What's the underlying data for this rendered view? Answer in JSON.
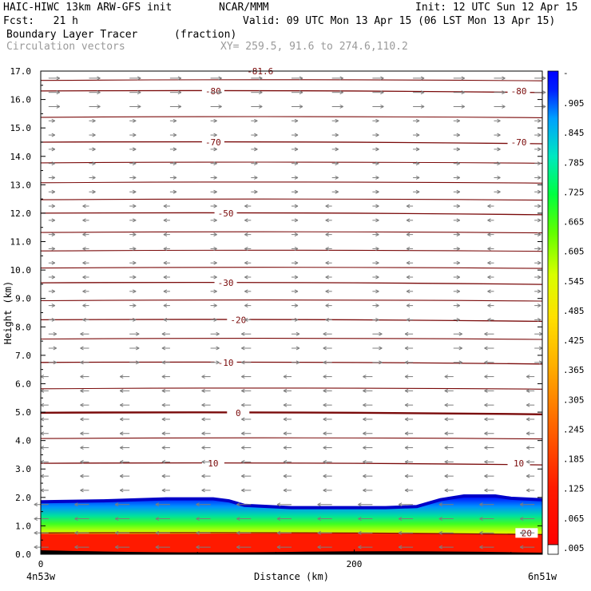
{
  "header": {
    "model_line": "HAIC-HIWC 13km ARW-GFS init",
    "org": "NCAR/MMM",
    "init": "Init: 12 UTC Sun 12 Apr 15",
    "fcst": "Fcst:   21 h",
    "valid": "Valid: 09 UTC Mon 13 Apr 15 (06 LST Mon 13 Apr 15)",
    "field_name": "Boundary Layer Tracer",
    "field_units": "(fraction)",
    "vectors_label": "Circulation vectors",
    "xy_range": "XY= 259.5, 91.6 to 274.6,110.2"
  },
  "chart_data": {
    "type": "heatmap",
    "ylabel": "Height (km)",
    "xlabel": "Distance (km)",
    "ylim": [
      0,
      17
    ],
    "xlim": [
      0,
      320
    ],
    "y_ticks": [
      "0.0",
      "1.0",
      "2.0",
      "3.0",
      "4.0",
      "5.0",
      "6.0",
      "7.0",
      "8.0",
      "9.0",
      "10.0",
      "11.0",
      "12.0",
      "13.0",
      "14.0",
      "15.0",
      "16.0",
      "17.0"
    ],
    "x_tick_labels": [
      {
        "x": 0,
        "label": "0"
      },
      {
        "x": 200,
        "label": "200"
      }
    ],
    "x_end_labels": {
      "left": "4n53w",
      "right": "6n51w"
    },
    "colorbar": {
      "labels": [
        ".005",
        ".065",
        ".125",
        ".185",
        ".245",
        ".305",
        ".365",
        ".425",
        ".485",
        ".545",
        ".605",
        ".665",
        ".725",
        ".785",
        ".845",
        ".905"
      ],
      "top_mark": "-"
    },
    "tracer_top_km": [
      {
        "x": 0,
        "y": 1.85
      },
      {
        "x": 40,
        "y": 1.88
      },
      {
        "x": 80,
        "y": 1.95
      },
      {
        "x": 110,
        "y": 1.95
      },
      {
        "x": 120,
        "y": 1.88
      },
      {
        "x": 130,
        "y": 1.72
      },
      {
        "x": 160,
        "y": 1.64
      },
      {
        "x": 220,
        "y": 1.64
      },
      {
        "x": 240,
        "y": 1.68
      },
      {
        "x": 255,
        "y": 1.92
      },
      {
        "x": 270,
        "y": 2.05
      },
      {
        "x": 290,
        "y": 2.05
      },
      {
        "x": 300,
        "y": 1.97
      },
      {
        "x": 320,
        "y": 1.92
      }
    ],
    "temperature_contours": [
      {
        "value": "-80",
        "y_km": 16.3,
        "labels_x": [
          110,
          305
        ]
      },
      {
        "value": "-70",
        "y_km": 14.5,
        "labels_x": [
          110,
          305
        ]
      },
      {
        "value": "-50",
        "y_km": 12.0,
        "labels_x": [
          118
        ]
      },
      {
        "value": "-30",
        "y_km": 9.55,
        "labels_x": [
          118
        ]
      },
      {
        "value": "-20",
        "y_km": 8.25,
        "labels_x": [
          126
        ]
      },
      {
        "value": "-10",
        "y_km": 6.75,
        "labels_x": [
          118
        ]
      },
      {
        "value": "0",
        "y_km": 4.98,
        "labels_x": [
          126
        ]
      },
      {
        "value": "10",
        "y_km": 3.2,
        "labels_x": [
          110,
          305
        ]
      },
      {
        "value": "20",
        "y_km": 0.75,
        "labels_x": [
          310
        ]
      }
    ],
    "other_contours_km": [
      16.7,
      15.4,
      13.8,
      13.1,
      12.5,
      11.35,
      10.7,
      10.1,
      8.95,
      7.6,
      5.85,
      4.1
    ],
    "top_partial_label": "-81.6",
    "vectors_grid": {
      "x_count": 13,
      "y_spacing_km": 0.5
    }
  },
  "colors": {
    "contour": "#7a0a0a",
    "vector": "#7d7d7d",
    "fill_saturated": "#ff1a00"
  }
}
